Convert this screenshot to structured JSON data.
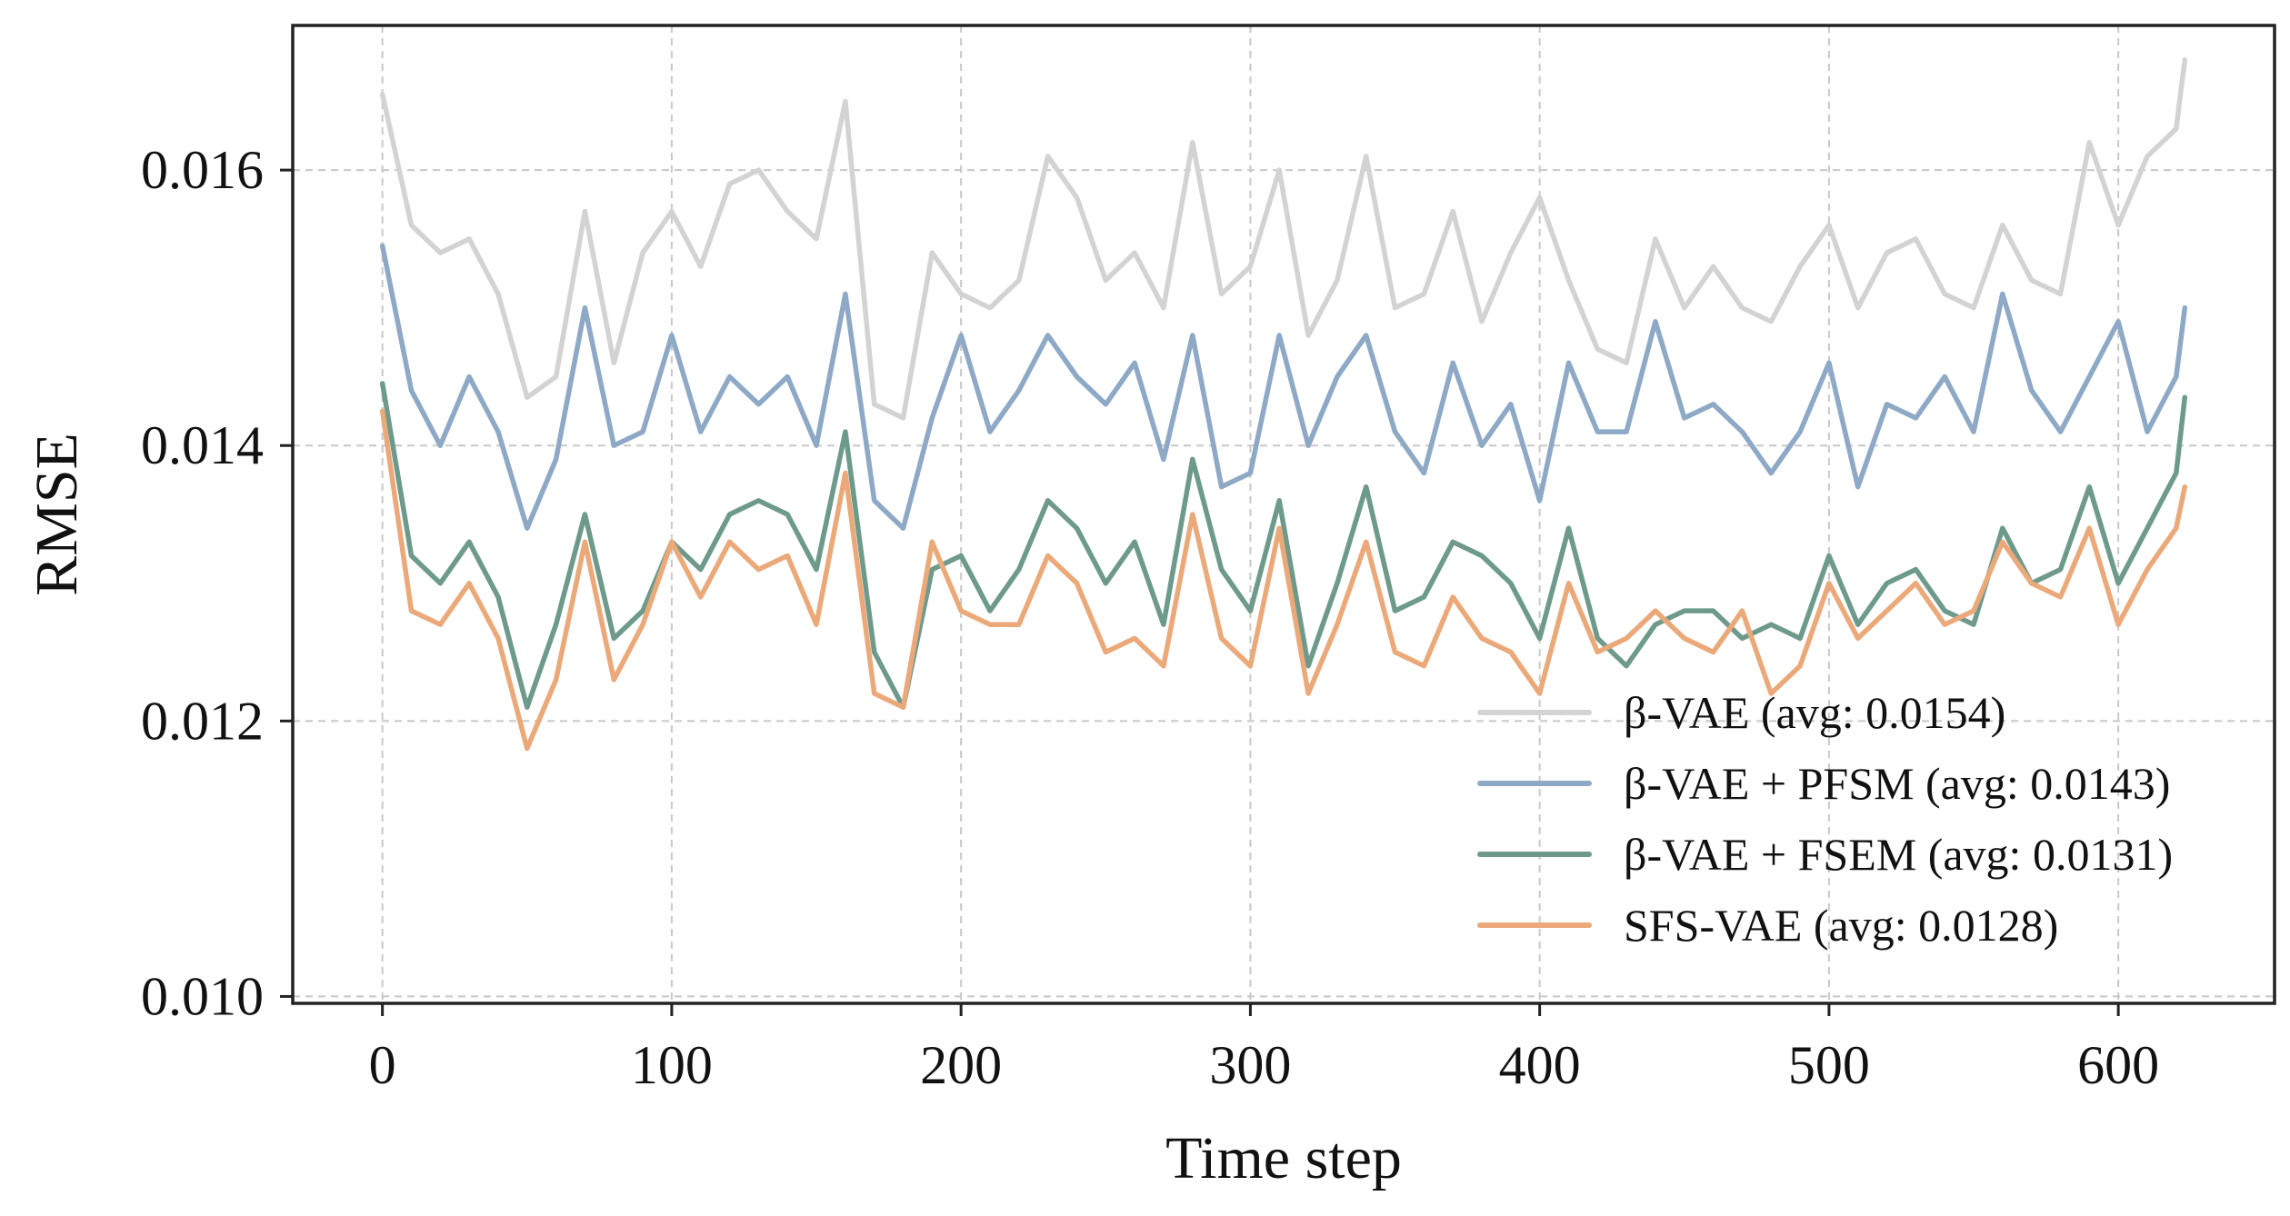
{
  "chart_data": {
    "type": "line",
    "title": "",
    "xlabel": "Time step",
    "ylabel": "RMSE",
    "xlim": [
      -31,
      654
    ],
    "ylim": [
      0.00995,
      0.01705
    ],
    "xticks": [
      0,
      100,
      200,
      300,
      400,
      500,
      600
    ],
    "xtick_labels": [
      "0",
      "100",
      "200",
      "300",
      "400",
      "500",
      "600"
    ],
    "yticks": [
      0.01,
      0.012,
      0.014,
      0.016
    ],
    "ytick_labels": [
      "0.010",
      "0.012",
      "0.014",
      "0.016"
    ],
    "grid": true,
    "legend_position": "lower-right",
    "x": [
      0,
      10,
      20,
      30,
      40,
      50,
      60,
      70,
      80,
      90,
      100,
      110,
      120,
      130,
      140,
      150,
      160,
      170,
      180,
      190,
      200,
      210,
      220,
      230,
      240,
      250,
      260,
      270,
      280,
      290,
      300,
      310,
      320,
      330,
      340,
      350,
      360,
      370,
      380,
      390,
      400,
      410,
      420,
      430,
      440,
      450,
      460,
      470,
      480,
      490,
      500,
      510,
      520,
      530,
      540,
      550,
      560,
      570,
      580,
      590,
      600,
      610,
      620,
      623
    ],
    "series": [
      {
        "name": "β-VAE",
        "label": "β-VAE (avg: 0.0154)",
        "color": "#d3d3d3",
        "values": [
          0.01655,
          0.0156,
          0.0154,
          0.0155,
          0.0151,
          0.01435,
          0.0145,
          0.0157,
          0.0146,
          0.0154,
          0.0157,
          0.0153,
          0.0159,
          0.016,
          0.0157,
          0.0155,
          0.0165,
          0.0143,
          0.0142,
          0.0154,
          0.0151,
          0.015,
          0.0152,
          0.0161,
          0.0158,
          0.0152,
          0.0154,
          0.015,
          0.0162,
          0.0151,
          0.0153,
          0.016,
          0.0148,
          0.0152,
          0.0161,
          0.015,
          0.0151,
          0.0157,
          0.0149,
          0.0154,
          0.0158,
          0.0152,
          0.0147,
          0.0146,
          0.0155,
          0.015,
          0.0153,
          0.015,
          0.0149,
          0.0153,
          0.0156,
          0.015,
          0.0154,
          0.0155,
          0.0151,
          0.015,
          0.0156,
          0.0152,
          0.0151,
          0.0162,
          0.0156,
          0.0161,
          0.0163,
          0.0168
        ]
      },
      {
        "name": "β-VAE + PFSM",
        "label": "β-VAE + PFSM (avg: 0.0143)",
        "color": "#8ea9c6",
        "values": [
          0.01545,
          0.0144,
          0.014,
          0.0145,
          0.0141,
          0.0134,
          0.0139,
          0.015,
          0.014,
          0.0141,
          0.0148,
          0.0141,
          0.0145,
          0.0143,
          0.0145,
          0.014,
          0.0151,
          0.0136,
          0.0134,
          0.0142,
          0.0148,
          0.0141,
          0.0144,
          0.0148,
          0.0145,
          0.0143,
          0.0146,
          0.0139,
          0.0148,
          0.0137,
          0.0138,
          0.0148,
          0.014,
          0.0145,
          0.0148,
          0.0141,
          0.0138,
          0.0146,
          0.014,
          0.0143,
          0.0136,
          0.0146,
          0.0141,
          0.0141,
          0.0149,
          0.0142,
          0.0143,
          0.0141,
          0.0138,
          0.0141,
          0.0146,
          0.0137,
          0.0143,
          0.0142,
          0.0145,
          0.0141,
          0.0151,
          0.0144,
          0.0141,
          0.0145,
          0.0149,
          0.0141,
          0.0145,
          0.015
        ]
      },
      {
        "name": "β-VAE + FSEM",
        "label": "β-VAE + FSEM (avg: 0.0131)",
        "color": "#6e9a8c",
        "values": [
          0.01445,
          0.0132,
          0.013,
          0.0133,
          0.0129,
          0.0121,
          0.0127,
          0.0135,
          0.0126,
          0.0128,
          0.0133,
          0.0131,
          0.0135,
          0.0136,
          0.0135,
          0.0131,
          0.0141,
          0.0125,
          0.0121,
          0.0131,
          0.0132,
          0.0128,
          0.0131,
          0.0136,
          0.0134,
          0.013,
          0.0133,
          0.0127,
          0.0139,
          0.0131,
          0.0128,
          0.0136,
          0.0124,
          0.013,
          0.0137,
          0.0128,
          0.0129,
          0.0133,
          0.0132,
          0.013,
          0.0126,
          0.0134,
          0.0126,
          0.0124,
          0.0127,
          0.0128,
          0.0128,
          0.0126,
          0.0127,
          0.0126,
          0.0132,
          0.0127,
          0.013,
          0.0131,
          0.0128,
          0.0127,
          0.0134,
          0.013,
          0.0131,
          0.0137,
          0.013,
          0.0134,
          0.0138,
          0.01435
        ]
      },
      {
        "name": "SFS-VAE",
        "label": "SFS-VAE (avg: 0.0128)",
        "color": "#eba97a",
        "values": [
          0.01425,
          0.0128,
          0.0127,
          0.013,
          0.0126,
          0.0118,
          0.0123,
          0.0133,
          0.0123,
          0.0127,
          0.0133,
          0.0129,
          0.0133,
          0.0131,
          0.0132,
          0.0127,
          0.0138,
          0.0122,
          0.0121,
          0.0133,
          0.0128,
          0.0127,
          0.0127,
          0.0132,
          0.013,
          0.0125,
          0.0126,
          0.0124,
          0.0135,
          0.0126,
          0.0124,
          0.0134,
          0.0122,
          0.0127,
          0.0133,
          0.0125,
          0.0124,
          0.0129,
          0.0126,
          0.0125,
          0.0122,
          0.013,
          0.0125,
          0.0126,
          0.0128,
          0.0126,
          0.0125,
          0.0128,
          0.0122,
          0.0124,
          0.013,
          0.0126,
          0.0128,
          0.013,
          0.0127,
          0.0128,
          0.0133,
          0.013,
          0.0129,
          0.0134,
          0.0127,
          0.0131,
          0.0134,
          0.0137
        ]
      }
    ]
  }
}
